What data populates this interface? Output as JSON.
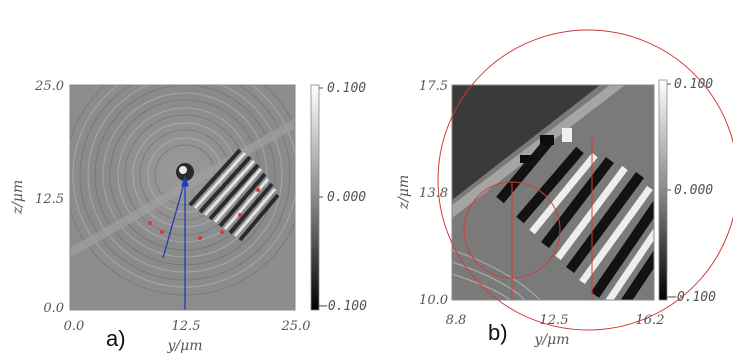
{
  "panels": [
    {
      "label": "a)",
      "x_label": "y/μm",
      "y_label": "z/μm",
      "x_ticks": [
        "0.0",
        "12.5",
        "25.0"
      ],
      "y_ticks": [
        "25.0",
        "12.5",
        "0.0"
      ],
      "colorbar_ticks": [
        "0.100",
        "0.000",
        "−0.100"
      ]
    },
    {
      "label": "b)",
      "x_label": "y/μm",
      "y_label": "z/μm",
      "x_ticks": [
        "8.8",
        "12.5",
        "16.2"
      ],
      "y_ticks": [
        "17.5",
        "13.8",
        "10.0"
      ],
      "colorbar_ticks": [
        "0.100",
        "0.000",
        "−0.100"
      ]
    }
  ],
  "colors": {
    "background_field": "#8c8c8c",
    "annotation_arrow": "#1f3fb5",
    "annotation_circle": "#d23c3c"
  }
}
